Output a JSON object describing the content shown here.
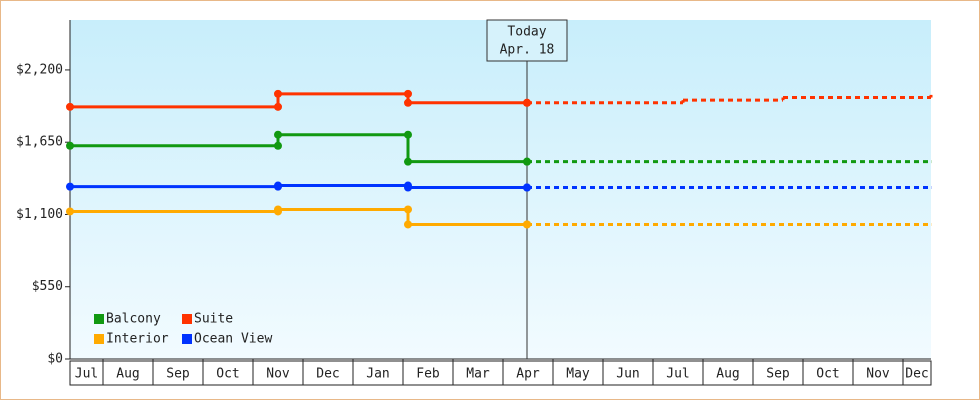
{
  "chart_data": {
    "type": "step-line",
    "xlim": [
      0.34,
      17.56
    ],
    "xticks": [
      {
        "value": 0,
        "label": "Jul"
      },
      {
        "value": 1,
        "label": "Aug"
      },
      {
        "value": 2,
        "label": "Sep"
      },
      {
        "value": 3,
        "label": "Oct"
      },
      {
        "value": 4,
        "label": "Nov"
      },
      {
        "value": 5,
        "label": "Dec"
      },
      {
        "value": 6,
        "label": "Jan"
      },
      {
        "value": 7,
        "label": "Feb"
      },
      {
        "value": 8,
        "label": "Mar"
      },
      {
        "value": 9,
        "label": "Apr"
      },
      {
        "value": 10,
        "label": "May"
      },
      {
        "value": 11,
        "label": "Jun"
      },
      {
        "value": 12,
        "label": "Jul"
      },
      {
        "value": 13,
        "label": "Aug"
      },
      {
        "value": 14,
        "label": "Sep"
      },
      {
        "value": 15,
        "label": "Oct"
      },
      {
        "value": 16,
        "label": "Nov"
      },
      {
        "value": 17,
        "label": "Dec"
      }
    ],
    "ylim": [
      0,
      2580
    ],
    "yticks": [
      {
        "value": 0,
        "label": "$0"
      },
      {
        "value": 550,
        "label": "$550"
      },
      {
        "value": 1100,
        "label": "$1,100"
      },
      {
        "value": 1650,
        "label": "$1,650"
      },
      {
        "value": 2200,
        "label": "$2,200"
      }
    ],
    "annotation": {
      "x": 9.48,
      "lines": [
        "Today",
        "Apr. 18"
      ]
    },
    "legend": "bottom-left",
    "series": [
      {
        "name": "Balcony",
        "color": "#119911",
        "x": [
          0.34,
          4.5,
          7.1,
          9.48
        ],
        "values": [
          1623,
          1707,
          1502,
          1502
        ],
        "forecast": {
          "x": [
            9.48,
            17.56
          ],
          "values": [
            1502,
            1502
          ]
        }
      },
      {
        "name": "Suite",
        "color": "#ff3300",
        "x": [
          0.34,
          4.5,
          7.1,
          9.48
        ],
        "values": [
          1919,
          2018,
          1950,
          1950
        ],
        "forecast": {
          "x": [
            9.48,
            12.6,
            14.6,
            17.56
          ],
          "values": [
            1950,
            1970,
            1990,
            2010
          ]
        }
      },
      {
        "name": "Interior",
        "color": "#ffaa00",
        "x": [
          0.34,
          4.5,
          7.1,
          9.48
        ],
        "values": [
          1123,
          1138,
          1024,
          1024
        ],
        "forecast": {
          "x": [
            9.48,
            17.56
          ],
          "values": [
            1024,
            1024
          ]
        }
      },
      {
        "name": "Ocean View",
        "color": "#0033ff",
        "x": [
          0.34,
          4.5,
          7.1,
          9.48
        ],
        "values": [
          1312,
          1320,
          1305,
          1305
        ],
        "forecast": {
          "x": [
            9.48,
            17.56
          ],
          "values": [
            1305,
            1305
          ]
        }
      }
    ]
  }
}
